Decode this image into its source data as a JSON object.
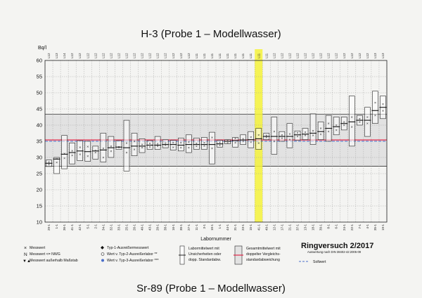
{
  "page": {
    "title": "H-3  (Probe 1 – Modellwasser)",
    "bottom_title": "Sr-89  (Probe 1 – Modellwasser)"
  },
  "chart_data": {
    "type": "box",
    "ylabel": "Bq/l",
    "xlabel": "Labornummer",
    "ylim": [
      10,
      60
    ],
    "yticks": [
      10,
      15,
      20,
      25,
      30,
      35,
      40,
      45,
      50,
      55,
      60
    ],
    "grid": true,
    "overall_mean": 35.4,
    "sollwert": 35.0,
    "double_band": [
      27.3,
      43.4
    ],
    "highlight_lab": "41-1",
    "colors": {
      "red_line": "#e2294a",
      "blue_line": "#4a6ec9",
      "highlight": "#f5f23a",
      "band": "#e2e2e2"
    },
    "labs": [
      {
        "top": "L12",
        "bottom": "29-1",
        "mean": 28.2,
        "lo": 27.2,
        "hi": 29.2,
        "x": [
          27.8,
          28.6
        ]
      },
      {
        "top": "L13",
        "bottom": "1-1",
        "mean": 29.5,
        "lo": 25.0,
        "hi": 30.0,
        "x": [
          28.5,
          29.6
        ]
      },
      {
        "top": "L14",
        "bottom": "36-1",
        "mean": 31.0,
        "lo": 26.5,
        "hi": 36.8,
        "x": [
          29.8,
          31.2
        ]
      },
      {
        "top": "L12",
        "bottom": "41-1",
        "mean": 31.5,
        "lo": 28.0,
        "hi": 34.5,
        "x": [
          30.7,
          32.1
        ]
      },
      {
        "top": "L12",
        "bottom": "42-1",
        "mean": 32.0,
        "lo": 29.0,
        "hi": 35.2,
        "x": [
          31.0,
          33.2
        ]
      },
      {
        "top": "L12",
        "bottom": "5-1",
        "mean": 31.8,
        "lo": 28.8,
        "hi": 35.0,
        "x": [
          30.4,
          33.4
        ]
      },
      {
        "top": "L12",
        "bottom": "2-1",
        "mean": 32.0,
        "lo": 29.5,
        "hi": 33.5,
        "x": [
          31.5,
          32.2
        ]
      },
      {
        "top": "L12",
        "bottom": "34-1",
        "mean": 32.3,
        "lo": 28.6,
        "hi": 37.5,
        "x": [
          30.0,
          32.8
        ]
      },
      {
        "top": "L12",
        "bottom": "32-1",
        "mean": 33.0,
        "lo": 30.0,
        "hi": 36.5,
        "x": [
          32.0,
          33.5
        ]
      },
      {
        "top": "L12",
        "bottom": "33-1",
        "mean": 33.2,
        "lo": 32.5,
        "hi": 35.2,
        "x": [
          33.1,
          33.3
        ]
      },
      {
        "top": "L12",
        "bottom": "25-1",
        "mean": 33.0,
        "lo": 25.8,
        "hi": 41.5,
        "x": [
          31.5,
          34.5
        ]
      },
      {
        "top": "L12",
        "bottom": "26-1",
        "mean": 33.5,
        "lo": 30.5,
        "hi": 37.5,
        "x": [
          32.5,
          35.0
        ]
      },
      {
        "top": "L12",
        "bottom": "40-1",
        "mean": 33.5,
        "lo": 31.5,
        "hi": 35.8,
        "x": [
          33.0,
          34.0
        ]
      },
      {
        "top": "L12",
        "bottom": "43-1",
        "mean": 33.8,
        "lo": 32.5,
        "hi": 35.2,
        "x": [
          33.3,
          34.4
        ]
      },
      {
        "top": "L12",
        "bottom": "20-1",
        "mean": 33.8,
        "lo": 32.5,
        "hi": 36.5,
        "x": [
          33.5,
          34.2
        ]
      },
      {
        "top": "L12",
        "bottom": "38-1",
        "mean": 34.0,
        "lo": 33.0,
        "hi": 35.5,
        "x": [
          33.8,
          34.5
        ]
      },
      {
        "top": "L12",
        "bottom": "16-1",
        "mean": 34.0,
        "lo": 32.3,
        "hi": 35.3,
        "x": [
          33.2,
          34.6
        ]
      },
      {
        "top": "L12",
        "bottom": "30-1",
        "mean": 33.8,
        "lo": 32.0,
        "hi": 36.0,
        "x": [
          33.0,
          34.6
        ]
      },
      {
        "top": "L12",
        "bottom": "27-1",
        "mean": 34.0,
        "lo": 31.5,
        "hi": 37.0,
        "x": [
          33.0,
          34.8
        ]
      },
      {
        "top": "L11",
        "bottom": "11-1",
        "mean": 34.0,
        "lo": 32.5,
        "hi": 36.0,
        "x": [
          33.5,
          34.4
        ]
      },
      {
        "top": "L11",
        "bottom": "3-1",
        "mean": 34.0,
        "lo": 32.5,
        "hi": 36.2,
        "x": [
          33.6,
          34.6
        ]
      },
      {
        "top": "L11",
        "bottom": "10-1",
        "mean": 34.0,
        "lo": 28.0,
        "hi": 37.8,
        "x": [
          32.8,
          36.2
        ]
      },
      {
        "top": "L11",
        "bottom": "1-1",
        "mean": 34.2,
        "lo": 33.2,
        "hi": 35.3,
        "x": [
          33.8,
          34.7
        ]
      },
      {
        "top": "L11",
        "bottom": "44-1",
        "mean": 35.0,
        "lo": 34.2,
        "hi": 35.5,
        "x": [
          34.6,
          35.2
        ]
      },
      {
        "top": "L11",
        "bottom": "31-1",
        "mean": 35.2,
        "lo": 33.2,
        "hi": 36.2,
        "x": [
          34.6,
          35.9
        ]
      },
      {
        "top": "L11",
        "bottom": "23-1",
        "mean": 35.4,
        "lo": 34.0,
        "hi": 37.0,
        "x": [
          35.0,
          35.8
        ]
      },
      {
        "top": "L11",
        "bottom": "15-1",
        "mean": 35.5,
        "lo": 33.0,
        "hi": 38.0,
        "x": [
          34.8,
          36.3
        ]
      },
      {
        "top": "L11",
        "bottom": "41-1",
        "mean": 35.8,
        "lo": 32.5,
        "hi": 39.0,
        "x": [
          34.5,
          37.0
        ]
      },
      {
        "top": "L11",
        "bottom": "49-1",
        "mean": 36.5,
        "lo": 35.5,
        "hi": 37.5,
        "x": [
          36.2,
          36.8
        ]
      },
      {
        "top": "L12",
        "bottom": "12-1",
        "mean": 36.5,
        "lo": 31.0,
        "hi": 42.5,
        "x": [
          35.0,
          38.0
        ]
      },
      {
        "top": "L12",
        "bottom": "17-1",
        "mean": 36.5,
        "lo": 35.0,
        "hi": 38.0,
        "x": [
          36.0,
          37.0
        ]
      },
      {
        "top": "L12",
        "bottom": "21-1",
        "mean": 36.5,
        "lo": 33.0,
        "hi": 40.5,
        "x": [
          35.5,
          37.3
        ]
      },
      {
        "top": "L12",
        "bottom": "37-1",
        "mean": 37.0,
        "lo": 35.3,
        "hi": 38.2,
        "x": [
          36.5,
          37.6
        ]
      },
      {
        "top": "L12",
        "bottom": "13-1",
        "mean": 37.2,
        "lo": 35.5,
        "hi": 39.0,
        "x": [
          36.8,
          37.8
        ]
      },
      {
        "top": "L12",
        "bottom": "18-1",
        "mean": 37.5,
        "lo": 34.0,
        "hi": 43.5,
        "x": [
          36.8,
          38.3
        ]
      },
      {
        "top": "L12",
        "bottom": "39-1",
        "mean": 38.0,
        "lo": 35.5,
        "hi": 41.0,
        "x": [
          37.2,
          39.0
        ]
      },
      {
        "top": "L12",
        "bottom": "8-1",
        "mean": 39.0,
        "lo": 35.0,
        "hi": 43.0,
        "x": [
          38.0,
          40.5
        ]
      },
      {
        "top": "L12",
        "bottom": "6-1",
        "mean": 39.5,
        "lo": 37.0,
        "hi": 42.5,
        "x": [
          38.5,
          40.0
        ]
      },
      {
        "top": "L12",
        "bottom": "24-1",
        "mean": 40.5,
        "lo": 38.5,
        "hi": 42.5,
        "x": [
          40.0,
          41.0
        ]
      },
      {
        "top": "L12",
        "bottom": "22-1",
        "mean": 41.0,
        "lo": 33.5,
        "hi": 49.0,
        "x": [
          39.5,
          42.5
        ]
      },
      {
        "top": "L12",
        "bottom": "7-1",
        "mean": 41.5,
        "lo": 40.0,
        "hi": 43.0,
        "x": [
          41.0,
          42.0
        ]
      },
      {
        "top": "L12",
        "bottom": "4-1",
        "mean": 41.5,
        "lo": 36.5,
        "hi": 45.5,
        "x": [
          40.5,
          42.5
        ]
      },
      {
        "top": "L13",
        "bottom": "35-1",
        "mean": 44.5,
        "lo": 40.5,
        "hi": 50.5,
        "x": [
          43.0,
          47.0
        ]
      },
      {
        "top": "L13",
        "bottom": "19-1",
        "mean": 45.5,
        "lo": 42.0,
        "hi": 49.0,
        "x": [
          44.5,
          46.5
        ]
      }
    ]
  },
  "legend": {
    "c1": [
      "Messwert",
      "Messwert <= NWG",
      "Messwert außerhalb Maßstab"
    ],
    "c2": [
      "Typ-1-Ausreißermesswert",
      "Wert v. Typ-2-Ausreißerlabor **",
      "Wert v. Typ-3-Ausreißerlabor ***"
    ],
    "c3": [
      "Labormittelwert mit",
      "Unsicherheiten oder",
      "dopp. Standardabw."
    ],
    "c4": [
      "Gesamtmittelwert mit",
      "doppelter Vergleichs-",
      "standardabweichung"
    ],
    "sollwert": "Sollwert"
  },
  "footer": {
    "ringversuch": "Ringversuch 2/2017",
    "auswertung": "Auswertung nach DIN 38402-42:2005-09"
  }
}
